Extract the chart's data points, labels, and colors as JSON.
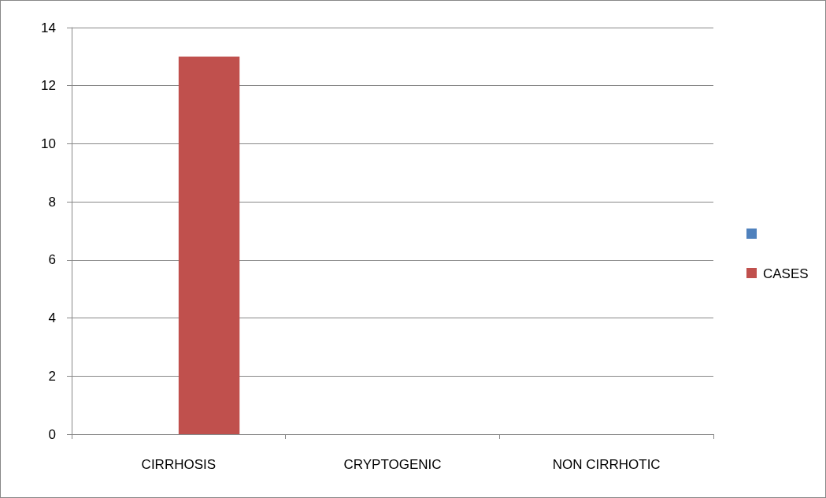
{
  "chart_data": {
    "type": "bar",
    "categories": [
      "CIRRHOSIS",
      "CRYPTOGENIC",
      "NON CIRRHOTIC"
    ],
    "series": [
      {
        "color": "#4f81bd",
        "values": [
          0,
          0,
          0
        ]
      },
      {
        "name": "CASES",
        "color": "#c0504d",
        "values": [
          13,
          0,
          0
        ]
      }
    ],
    "ylim": [
      0,
      14
    ],
    "yticks": [
      0,
      2,
      4,
      6,
      8,
      10,
      12,
      14
    ],
    "grid": "y",
    "legend": "right"
  }
}
